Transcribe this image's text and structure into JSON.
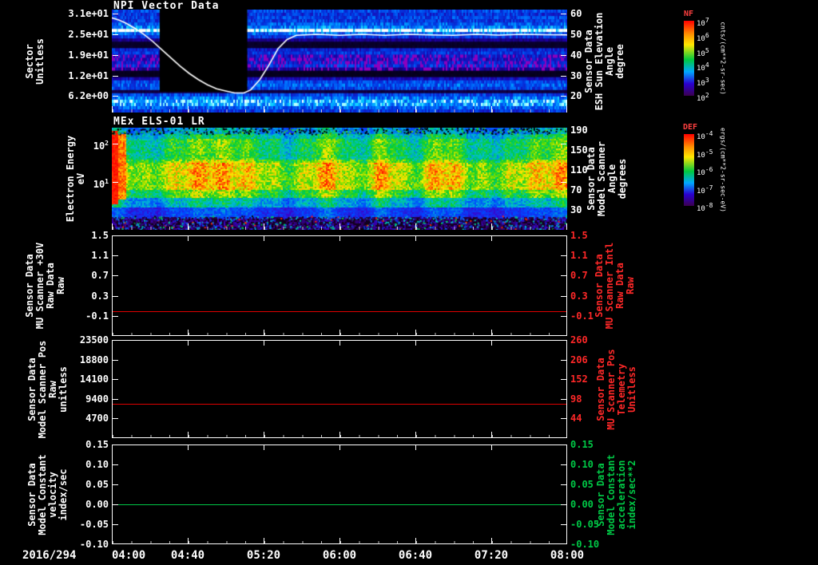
{
  "figure": {
    "background": "#000000",
    "accent_red": "#ff2828",
    "accent_green": "#00c846",
    "line_red": "#e00000",
    "line_white": "#ffffff"
  },
  "x_axis": {
    "date": "2016/294",
    "ticks": [
      "04:00",
      "04:40",
      "05:20",
      "06:00",
      "06:40",
      "07:20",
      "08:00"
    ],
    "range_hours": [
      4.0,
      8.0
    ]
  },
  "chart_data": [
    {
      "type": "heatmap",
      "title": "NPI Vector Data",
      "ylabel_left_lines": [
        "Sector",
        "Unitless"
      ],
      "yticks_left": [
        "3.1e+01",
        "2.5e+01",
        "1.9e+01",
        "1.2e+01",
        "6.2e+00"
      ],
      "ylabel_right_lines": [
        "Sensor Data",
        "ESH Sun Elevation",
        "Angle",
        "degree"
      ],
      "yticks_right": [
        "60",
        "50",
        "40",
        "30",
        "20"
      ],
      "ylim_right": [
        12,
        62
      ],
      "colorbar": {
        "title": "NF",
        "units": "cnts/(cm**2-sr-sec)",
        "ticks": [
          {
            "b": "10",
            "e": "7"
          },
          {
            "b": "10",
            "e": "6"
          },
          {
            "b": "10",
            "e": "5"
          },
          {
            "b": "10",
            "e": "4"
          },
          {
            "b": "10",
            "e": "3"
          },
          {
            "b": "10",
            "e": "2"
          }
        ]
      },
      "data_gap_hours": [
        4.42,
        5.19
      ],
      "row_profile": [
        0.55,
        0.5,
        0.55,
        0.52,
        0.6,
        0.66,
        1.0,
        0.62,
        0.5,
        0.28,
        0.07,
        0.07,
        0.45,
        0.5,
        0.42,
        0.4,
        0.45,
        0.5,
        0.3,
        0.05,
        0.05,
        0.38,
        0.55,
        0.6,
        0.55,
        0.12,
        0.55,
        0.66,
        0.78,
        0.74,
        0.6,
        0.5
      ],
      "purple_speckle_rows": [
        14,
        18
      ],
      "overlay_line": {
        "name": "ESH Sun Elevation Angle",
        "color": "#ffffff",
        "x_hours": [
          4.0,
          4.06,
          4.12,
          4.2,
          4.28,
          4.36,
          4.44,
          4.52,
          4.6,
          4.68,
          4.76,
          4.84,
          4.92,
          5.0,
          5.08,
          5.16,
          5.22,
          5.3,
          5.38,
          5.46,
          5.54,
          5.62,
          5.8,
          6.0,
          6.2,
          6.4,
          6.6,
          6.8,
          7.0,
          7.2,
          7.4,
          7.6,
          7.8,
          8.0
        ],
        "y_degrees": [
          58,
          57,
          55.5,
          53,
          50,
          46.5,
          42.5,
          38.5,
          34.5,
          31,
          28,
          25.5,
          23.5,
          22.5,
          21.5,
          21.5,
          23,
          28,
          35,
          43,
          47.5,
          49.5,
          50,
          49.5,
          50,
          49.5,
          50,
          49.7,
          49.5,
          50,
          49.6,
          50,
          49.8,
          49.7
        ]
      }
    },
    {
      "type": "heatmap",
      "title": "MEx ELS-01 LR",
      "ylabel_left_lines": [
        "Electron Energy",
        "eV"
      ],
      "yticks_left": [
        {
          "b": "10",
          "e": "2"
        },
        {
          "b": "10",
          "e": "1"
        }
      ],
      "ylabel_right_lines": [
        "Sensor Data",
        "Model Scanner",
        "Angle",
        "degrees"
      ],
      "yticks_right": [
        "190",
        "150",
        "110",
        "70",
        "30"
      ],
      "colorbar": {
        "title": "DEF",
        "units": "ergs/(cm**2-sr-sec-eV)",
        "ticks": [
          {
            "b": "10",
            "e": "-4"
          },
          {
            "b": "10",
            "e": "-5"
          },
          {
            "b": "10",
            "e": "-6"
          },
          {
            "b": "10",
            "e": "-7"
          },
          {
            "b": "10",
            "e": "-8"
          }
        ]
      }
    },
    {
      "type": "line",
      "ylabel_left_lines": [
        "Sensor Data",
        "MU Scanner +30V",
        "Raw Data",
        "Raw"
      ],
      "yticks_left": [
        "1.5",
        "1.1",
        "0.7",
        "0.3",
        "-0.1"
      ],
      "ylabel_right_lines": [
        "Sensor Data",
        "MU Scanner Intl",
        "Raw Data",
        "Raw"
      ],
      "yticks_right": [
        "1.5",
        "1.1",
        "0.7",
        "0.3",
        "-0.1"
      ],
      "right_color": "#ff2828",
      "ylim": [
        -0.5,
        1.5
      ],
      "series": [
        {
          "name": "mu-scanner-30v-raw",
          "color": "#e00000",
          "constant_value": 0.0
        }
      ]
    },
    {
      "type": "line",
      "ylabel_left_lines": [
        "Sensor Data",
        "Model Scanner Pos",
        "Raw",
        "unitless"
      ],
      "yticks_left": [
        "23500",
        "18800",
        "14100",
        "9400",
        "4700"
      ],
      "ylabel_right_lines": [
        "Sensor Data",
        "MU Scanner Pos",
        "Telemetry",
        "Unitless"
      ],
      "yticks_right": [
        "260",
        "206",
        "152",
        "98",
        "44"
      ],
      "right_color": "#ff2828",
      "ylim": [
        0,
        23500
      ],
      "series": [
        {
          "name": "model-scanner-pos-raw",
          "color": "#e00000",
          "constant_value": 8200
        }
      ]
    },
    {
      "type": "line",
      "ylabel_left_lines": [
        "Sensor Data",
        "Model Constant",
        "velocity",
        "index/sec"
      ],
      "yticks_left": [
        "0.15",
        "0.10",
        "0.05",
        "0.00",
        "-0.05",
        "-0.10"
      ],
      "ylabel_right_lines": [
        "Sensor Data",
        "Model Constant",
        "acceleration",
        "index/sec**2"
      ],
      "yticks_right": [
        "0.15",
        "0.10",
        "0.05",
        "0.00",
        "-0.05",
        "-0.10"
      ],
      "right_color": "#00c846",
      "ylim": [
        -0.1,
        0.15
      ],
      "series": [
        {
          "name": "model-constant-velocity",
          "color": "#00c846",
          "constant_value": 0.0
        }
      ]
    }
  ]
}
